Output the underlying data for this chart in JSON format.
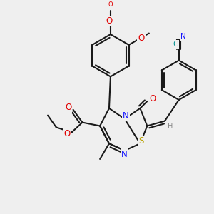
{
  "bg_color": "#efefef",
  "bond_color": "#1a1a1a",
  "bond_width": 1.5,
  "atom_colors": {
    "N": "#1414ff",
    "O": "#e00000",
    "S": "#b8a000",
    "CN_C": "#009090",
    "CN_N": "#1414ff",
    "H": "#888888"
  },
  "font_size_atom": 8.5,
  "font_size_small": 7.0
}
